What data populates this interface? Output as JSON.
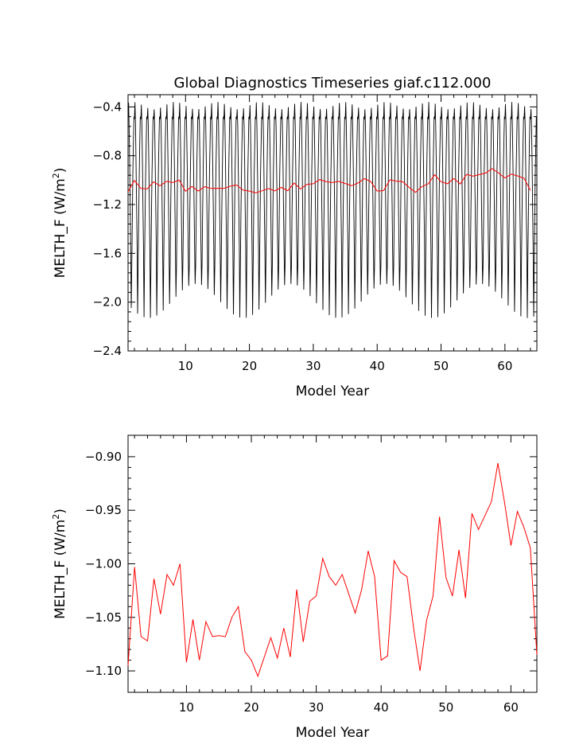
{
  "chart_data": [
    {
      "type": "line",
      "title": "Global Diagnostics Timeseries giaf.c112.000",
      "xlabel": "Model Year",
      "ylabel_main": "MELTH_F (W/m",
      "ylabel_sup": "2",
      "ylabel_close": ")",
      "xlim": [
        1,
        65
      ],
      "ylim": [
        -2.4,
        -0.3
      ],
      "xticks": [
        10,
        20,
        30,
        40,
        50,
        60
      ],
      "xtick_labels": [
        "10",
        "20",
        "30",
        "40",
        "50",
        "60"
      ],
      "yticks": [
        -2.4,
        -2.0,
        -1.6,
        -1.2,
        -0.8,
        -0.4
      ],
      "ytick_labels": [
        "−2.4",
        "−2.0",
        "−1.6",
        "−1.2",
        "−0.8",
        "−0.4"
      ],
      "grid": false,
      "series": [
        {
          "kind": "monthly",
          "color": "#000000",
          "annual_cycle": [
            -0.5,
            -0.42,
            -0.55,
            -0.85,
            -1.2,
            -1.55,
            -1.85,
            -1.7,
            -1.3,
            -0.95,
            -0.7,
            -0.48
          ],
          "values_note_years": [
            1,
            64
          ]
        },
        {
          "kind": "annual",
          "color": "#ff0000",
          "x": [
            1,
            2,
            3,
            4,
            5,
            6,
            7,
            8,
            9,
            10,
            11,
            12,
            13,
            14,
            15,
            16,
            17,
            18,
            19,
            20,
            21,
            22,
            23,
            24,
            25,
            26,
            27,
            28,
            29,
            30,
            31,
            32,
            33,
            34,
            35,
            36,
            37,
            38,
            39,
            40,
            41,
            42,
            43,
            44,
            45,
            46,
            47,
            48,
            49,
            50,
            51,
            52,
            53,
            54,
            55,
            56,
            57,
            58,
            59,
            60,
            61,
            62,
            63,
            64
          ],
          "values": [
            -1.095,
            -1.003,
            -1.068,
            -1.072,
            -1.014,
            -1.047,
            -1.01,
            -1.02,
            -1.0,
            -1.092,
            -1.052,
            -1.09,
            -1.054,
            -1.068,
            -1.067,
            -1.068,
            -1.05,
            -1.04,
            -1.082,
            -1.09,
            -1.105,
            -1.087,
            -1.069,
            -1.088,
            -1.06,
            -1.087,
            -1.024,
            -1.073,
            -1.035,
            -1.03,
            -0.995,
            -1.012,
            -1.02,
            -1.01,
            -1.028,
            -1.046,
            -1.024,
            -0.988,
            -1.012,
            -1.09,
            -1.086,
            -0.997,
            -1.008,
            -1.012,
            -1.06,
            -1.1,
            -1.053,
            -1.03,
            -0.956,
            -1.013,
            -1.03,
            -0.987,
            -1.032,
            -0.953,
            -0.968,
            -0.955,
            -0.942,
            -0.906,
            -0.942,
            -0.983,
            -0.951,
            -0.966,
            -0.985,
            -1.085
          ]
        }
      ]
    },
    {
      "type": "line",
      "title": "",
      "xlabel": "Model Year",
      "ylabel_main": "MELTH_F (W/m",
      "ylabel_sup": "2",
      "ylabel_close": ")",
      "xlim": [
        1,
        64
      ],
      "ylim": [
        -1.12,
        -0.88
      ],
      "xticks": [
        10,
        20,
        30,
        40,
        50,
        60
      ],
      "xtick_labels": [
        "10",
        "20",
        "30",
        "40",
        "50",
        "60"
      ],
      "yticks": [
        -1.1,
        -1.05,
        -1.0,
        -0.95,
        -0.9
      ],
      "ytick_labels": [
        "−1.10",
        "−1.05",
        "−1.00",
        "−0.95",
        "−0.90"
      ],
      "grid": false,
      "series": [
        {
          "kind": "annual",
          "color": "#ff0000",
          "x": [
            1,
            2,
            3,
            4,
            5,
            6,
            7,
            8,
            9,
            10,
            11,
            12,
            13,
            14,
            15,
            16,
            17,
            18,
            19,
            20,
            21,
            22,
            23,
            24,
            25,
            26,
            27,
            28,
            29,
            30,
            31,
            32,
            33,
            34,
            35,
            36,
            37,
            38,
            39,
            40,
            41,
            42,
            43,
            44,
            45,
            46,
            47,
            48,
            49,
            50,
            51,
            52,
            53,
            54,
            55,
            56,
            57,
            58,
            59,
            60,
            61,
            62,
            63,
            64
          ],
          "values": [
            -1.095,
            -1.003,
            -1.068,
            -1.072,
            -1.014,
            -1.047,
            -1.01,
            -1.02,
            -1.0,
            -1.092,
            -1.052,
            -1.09,
            -1.054,
            -1.068,
            -1.067,
            -1.068,
            -1.05,
            -1.04,
            -1.082,
            -1.09,
            -1.105,
            -1.087,
            -1.069,
            -1.088,
            -1.06,
            -1.087,
            -1.024,
            -1.073,
            -1.035,
            -1.03,
            -0.995,
            -1.012,
            -1.02,
            -1.01,
            -1.028,
            -1.046,
            -1.024,
            -0.988,
            -1.012,
            -1.09,
            -1.086,
            -0.997,
            -1.008,
            -1.012,
            -1.06,
            -1.1,
            -1.053,
            -1.03,
            -0.956,
            -1.013,
            -1.03,
            -0.987,
            -1.032,
            -0.953,
            -0.968,
            -0.955,
            -0.942,
            -0.906,
            -0.942,
            -0.983,
            -0.951,
            -0.966,
            -0.985,
            -1.085
          ]
        }
      ]
    }
  ]
}
